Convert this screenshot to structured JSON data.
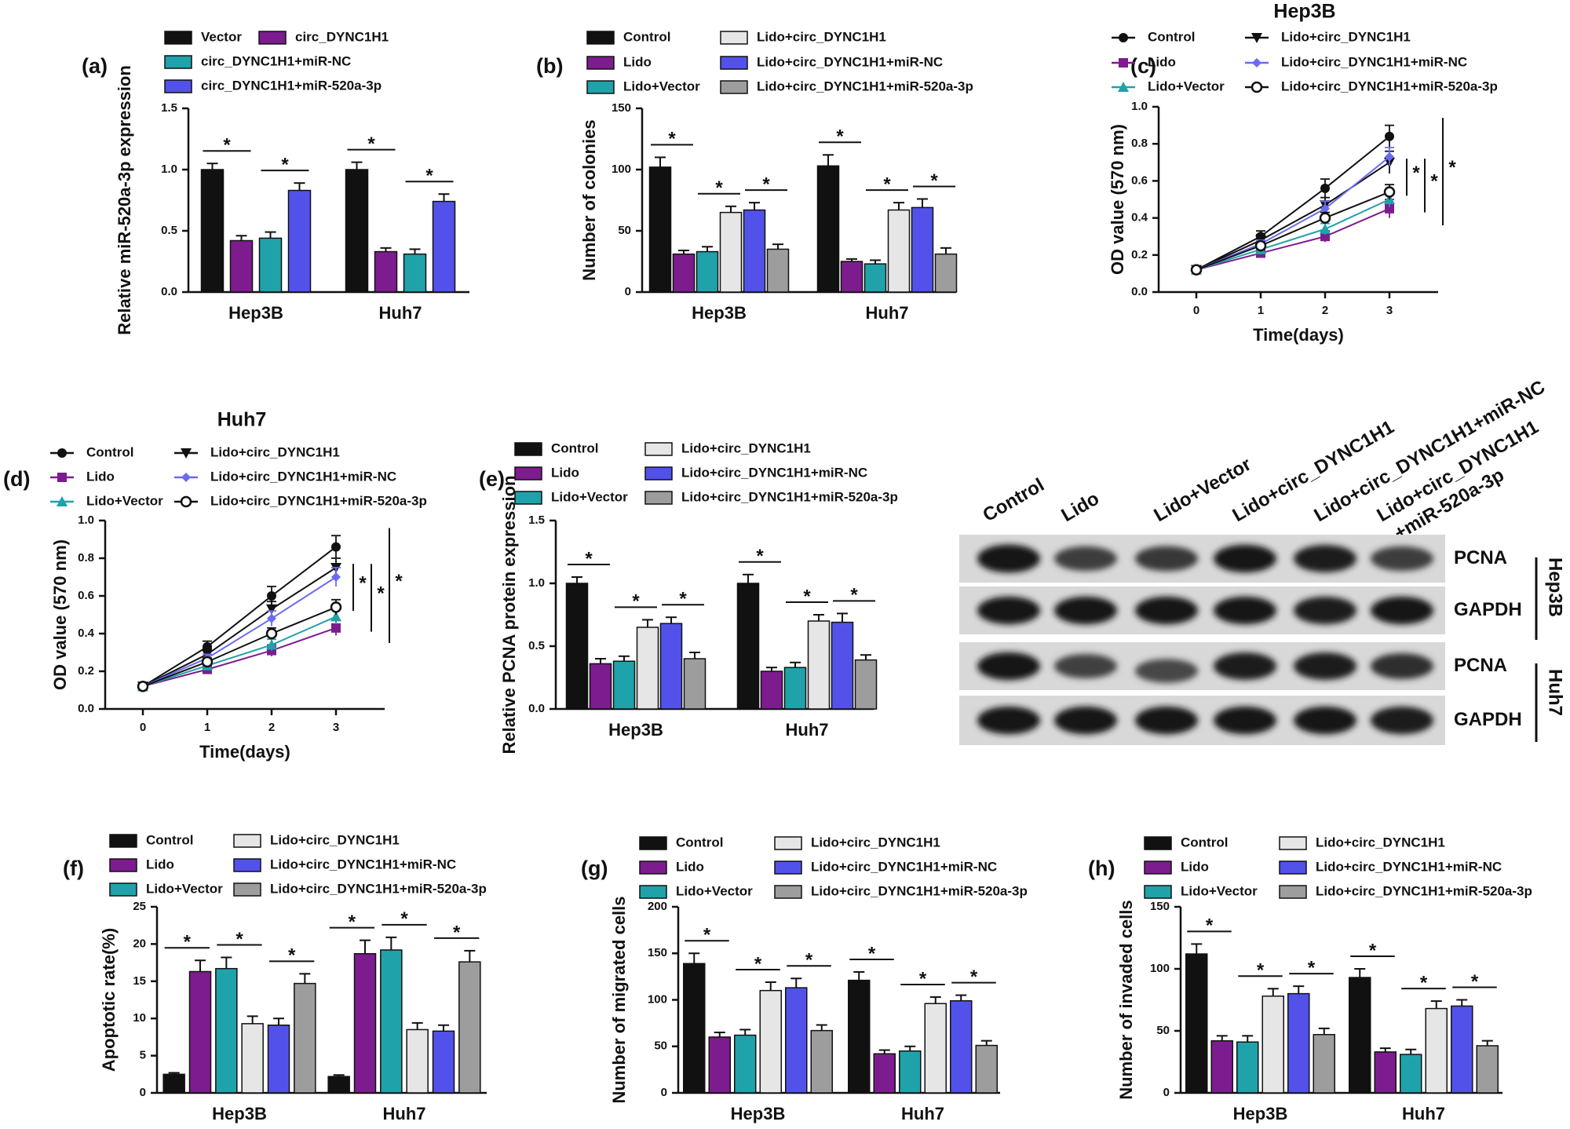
{
  "figure": {
    "colors": {
      "black": "#111111",
      "purple": "#7d1c8e",
      "teal": "#1fa2aa",
      "lightgray": "#e6e6e6",
      "blue": "#5252ea",
      "gray": "#9d9d9d",
      "line_purple": "#7d1c8e",
      "line_teal": "#1fa2aa",
      "line_blue": "#6b6bf0"
    },
    "western_blot": {
      "lanes": [
        "Control",
        "Lido",
        "Lido+Vector",
        "Lido+circ_DYNC1H1",
        "Lido+circ_DYNC1H1+miR-NC",
        "Lido+circ_DYNC1H1",
        "+miR-520a-3p"
      ],
      "rows": [
        "PCNA",
        "GAPDH",
        "PCNA",
        "GAPDH"
      ],
      "cell_lines": [
        "Hep3B",
        "Huh7"
      ],
      "pcna_hep3b_intensity": [
        1.0,
        0.55,
        0.6,
        0.95,
        0.9,
        0.55
      ],
      "pcna_huh7_intensity": [
        0.95,
        0.5,
        0.45,
        0.9,
        0.9,
        0.7
      ]
    }
  },
  "chart_data": [
    {
      "panel": "(a)",
      "type": "bar",
      "categories": [
        "Hep3B",
        "Huh7"
      ],
      "ylabel": "Relative miR-520a-3p expression",
      "ylim": [
        0,
        1.5
      ],
      "yticks": [
        "0.0",
        "0.5",
        "1.0",
        "1.5"
      ],
      "series": [
        {
          "name": "Vector",
          "color": "black",
          "values": [
            1.0,
            1.0
          ],
          "err": [
            0.05,
            0.06
          ]
        },
        {
          "name": "circ_DYNC1H1",
          "color": "purple",
          "values": [
            0.42,
            0.33
          ],
          "err": [
            0.04,
            0.03
          ]
        },
        {
          "name": "circ_DYNC1H1+miR-NC",
          "color": "teal",
          "values": [
            0.44,
            0.31
          ],
          "err": [
            0.05,
            0.04
          ]
        },
        {
          "name": "circ_DYNC1H1+miR-520a-3p",
          "color": "blue",
          "values": [
            0.83,
            0.74
          ],
          "err": [
            0.06,
            0.06
          ]
        }
      ],
      "sig": [
        [
          0,
          1
        ],
        [
          2,
          3
        ]
      ],
      "sig_label": "*"
    },
    {
      "panel": "(b)",
      "type": "bar",
      "categories": [
        "Hep3B",
        "Huh7"
      ],
      "ylabel": "Number of colonies",
      "ylim": [
        0,
        150
      ],
      "yticks": [
        "0",
        "50",
        "100",
        "150"
      ],
      "series": [
        {
          "name": "Control",
          "color": "black",
          "values": [
            102,
            103
          ],
          "err": [
            8,
            9
          ]
        },
        {
          "name": "Lido",
          "color": "purple",
          "values": [
            31,
            25
          ],
          "err": [
            3,
            2
          ]
        },
        {
          "name": "Lido+Vector",
          "color": "teal",
          "values": [
            33,
            23
          ],
          "err": [
            4,
            3
          ]
        },
        {
          "name": "Lido+circ_DYNC1H1",
          "color": "lightgray",
          "values": [
            65,
            67
          ],
          "err": [
            5,
            6
          ]
        },
        {
          "name": "Lido+circ_DYNC1H1+miR-NC",
          "color": "blue",
          "values": [
            67,
            69
          ],
          "err": [
            6,
            7
          ]
        },
        {
          "name": "Lido+circ_DYNC1H1+miR-520a-3p",
          "color": "gray",
          "values": [
            35,
            31
          ],
          "err": [
            4,
            5
          ]
        }
      ],
      "sig": [
        [
          0,
          1
        ],
        [
          2,
          3
        ],
        [
          4,
          5
        ]
      ],
      "sig_label": "*"
    },
    {
      "panel": "(c)",
      "type": "line",
      "title": "Hep3B",
      "x": [
        0,
        1,
        2,
        3
      ],
      "xticks": [
        "0",
        "1",
        "2",
        "3"
      ],
      "xlabel": "Time(days)",
      "ylabel": "OD value (570 nm)",
      "ylim": [
        0,
        1.0
      ],
      "yticks": [
        "0.0",
        "0.2",
        "0.4",
        "0.6",
        "0.8",
        "1.0"
      ],
      "series": [
        {
          "name": "Control",
          "color": "black",
          "marker": "circle",
          "values": [
            0.12,
            0.3,
            0.56,
            0.84
          ],
          "err": [
            0.01,
            0.03,
            0.05,
            0.06
          ]
        },
        {
          "name": "Lido",
          "color": "line_purple",
          "marker": "square",
          "values": [
            0.12,
            0.21,
            0.3,
            0.45
          ],
          "err": [
            0.01,
            0.02,
            0.03,
            0.05
          ]
        },
        {
          "name": "Lido+Vector",
          "color": "line_teal",
          "marker": "triangle",
          "values": [
            0.12,
            0.23,
            0.34,
            0.5
          ],
          "err": [
            0.01,
            0.02,
            0.03,
            0.04
          ]
        },
        {
          "name": "Lido+circ_DYNC1H1",
          "color": "black",
          "marker": "triangle-down",
          "values": [
            0.12,
            0.28,
            0.47,
            0.7
          ],
          "err": [
            0.01,
            0.03,
            0.04,
            0.06
          ]
        },
        {
          "name": "Lido+circ_DYNC1H1+miR-NC",
          "color": "line_blue",
          "marker": "diamond",
          "values": [
            0.12,
            0.26,
            0.45,
            0.73
          ],
          "err": [
            0.01,
            0.02,
            0.04,
            0.05
          ]
        },
        {
          "name": "Lido+circ_DYNC1H1+miR-520a-3p",
          "color": "black",
          "marker": "open-circle",
          "values": [
            0.12,
            0.25,
            0.4,
            0.54
          ],
          "err": [
            0.01,
            0.02,
            0.03,
            0.04
          ]
        }
      ],
      "sig_label": "*"
    },
    {
      "panel": "(d)",
      "type": "line",
      "title": "Huh7",
      "x": [
        0,
        1,
        2,
        3
      ],
      "xticks": [
        "0",
        "1",
        "2",
        "3"
      ],
      "xlabel": "Time(days)",
      "ylabel": "OD value (570 nm)",
      "ylim": [
        0,
        1.0
      ],
      "yticks": [
        "0.0",
        "0.2",
        "0.4",
        "0.6",
        "0.8",
        "1.0"
      ],
      "series": [
        {
          "name": "Control",
          "color": "black",
          "marker": "circle",
          "values": [
            0.12,
            0.33,
            0.6,
            0.86
          ],
          "err": [
            0.01,
            0.03,
            0.05,
            0.06
          ]
        },
        {
          "name": "Lido",
          "color": "line_purple",
          "marker": "square",
          "values": [
            0.12,
            0.21,
            0.31,
            0.43
          ],
          "err": [
            0.01,
            0.02,
            0.03,
            0.04
          ]
        },
        {
          "name": "Lido+Vector",
          "color": "line_teal",
          "marker": "triangle",
          "values": [
            0.12,
            0.23,
            0.34,
            0.49
          ],
          "err": [
            0.01,
            0.02,
            0.03,
            0.04
          ]
        },
        {
          "name": "Lido+circ_DYNC1H1",
          "color": "black",
          "marker": "triangle-down",
          "values": [
            0.12,
            0.29,
            0.53,
            0.75
          ],
          "err": [
            0.01,
            0.03,
            0.04,
            0.05
          ]
        },
        {
          "name": "Lido+circ_DYNC1H1+miR-NC",
          "color": "line_blue",
          "marker": "diamond",
          "values": [
            0.12,
            0.27,
            0.48,
            0.7
          ],
          "err": [
            0.01,
            0.02,
            0.04,
            0.05
          ]
        },
        {
          "name": "Lido+circ_DYNC1H1+miR-520a-3p",
          "color": "black",
          "marker": "open-circle",
          "values": [
            0.12,
            0.25,
            0.4,
            0.54
          ],
          "err": [
            0.01,
            0.02,
            0.03,
            0.04
          ]
        }
      ],
      "sig_label": "*"
    },
    {
      "panel": "(e)",
      "type": "bar",
      "categories": [
        "Hep3B",
        "Huh7"
      ],
      "ylabel": "Relative PCNA protein expression",
      "ylim": [
        0,
        1.5
      ],
      "yticks": [
        "0.0",
        "0.5",
        "1.0",
        "1.5"
      ],
      "series": [
        {
          "name": "Control",
          "color": "black",
          "values": [
            1.0,
            1.0
          ],
          "err": [
            0.05,
            0.07
          ]
        },
        {
          "name": "Lido",
          "color": "purple",
          "values": [
            0.36,
            0.3
          ],
          "err": [
            0.04,
            0.03
          ]
        },
        {
          "name": "Lido+Vector",
          "color": "teal",
          "values": [
            0.38,
            0.33
          ],
          "err": [
            0.04,
            0.04
          ]
        },
        {
          "name": "Lido+circ_DYNC1H1",
          "color": "lightgray",
          "values": [
            0.65,
            0.7
          ],
          "err": [
            0.06,
            0.05
          ]
        },
        {
          "name": "Lido+circ_DYNC1H1+miR-NC",
          "color": "blue",
          "values": [
            0.68,
            0.69
          ],
          "err": [
            0.05,
            0.07
          ]
        },
        {
          "name": "Lido+circ_DYNC1H1+miR-520a-3p",
          "color": "gray",
          "values": [
            0.4,
            0.39
          ],
          "err": [
            0.05,
            0.04
          ]
        }
      ],
      "sig": [
        [
          0,
          1
        ],
        [
          2,
          3
        ],
        [
          4,
          5
        ]
      ],
      "sig_label": "*"
    },
    {
      "panel": "(f)",
      "type": "bar",
      "categories": [
        "Hep3B",
        "Huh7"
      ],
      "ylabel": "Apoptotic rate(%)",
      "ylim": [
        0,
        25
      ],
      "yticks": [
        "0",
        "5",
        "10",
        "15",
        "20",
        "25"
      ],
      "series": [
        {
          "name": "Control",
          "color": "black",
          "values": [
            2.5,
            2.2
          ],
          "err": [
            0.2,
            0.2
          ]
        },
        {
          "name": "Lido",
          "color": "purple",
          "values": [
            16.3,
            18.7
          ],
          "err": [
            1.5,
            1.8
          ]
        },
        {
          "name": "Lido+Vector",
          "color": "teal",
          "values": [
            16.7,
            19.2
          ],
          "err": [
            1.5,
            1.7
          ]
        },
        {
          "name": "Lido+circ_DYNC1H1",
          "color": "lightgray",
          "values": [
            9.3,
            8.5
          ],
          "err": [
            1.0,
            0.9
          ]
        },
        {
          "name": "Lido+circ_DYNC1H1+miR-NC",
          "color": "blue",
          "values": [
            9.1,
            8.3
          ],
          "err": [
            0.9,
            0.8
          ]
        },
        {
          "name": "Lido+circ_DYNC1H1+miR-520a-3p",
          "color": "gray",
          "values": [
            14.7,
            17.6
          ],
          "err": [
            1.3,
            1.5
          ]
        }
      ],
      "sig": [
        [
          0,
          1
        ],
        [
          2,
          3
        ],
        [
          4,
          5
        ]
      ],
      "sig_label": "*"
    },
    {
      "panel": "(g)",
      "type": "bar",
      "categories": [
        "Hep3B",
        "Huh7"
      ],
      "ylabel": "Number of migrated cells",
      "ylim": [
        0,
        200
      ],
      "yticks": [
        "0",
        "50",
        "100",
        "150",
        "200"
      ],
      "series": [
        {
          "name": "Control",
          "color": "black",
          "values": [
            139,
            121
          ],
          "err": [
            11,
            9
          ]
        },
        {
          "name": "Lido",
          "color": "purple",
          "values": [
            60,
            42
          ],
          "err": [
            5,
            4
          ]
        },
        {
          "name": "Lido+Vector",
          "color": "teal",
          "values": [
            62,
            45
          ],
          "err": [
            6,
            5
          ]
        },
        {
          "name": "Lido+circ_DYNC1H1",
          "color": "lightgray",
          "values": [
            110,
            96
          ],
          "err": [
            9,
            7
          ]
        },
        {
          "name": "Lido+circ_DYNC1H1+miR-NC",
          "color": "blue",
          "values": [
            113,
            99
          ],
          "err": [
            10,
            6
          ]
        },
        {
          "name": "Lido+circ_DYNC1H1+miR-520a-3p",
          "color": "gray",
          "values": [
            67,
            51
          ],
          "err": [
            6,
            5
          ]
        }
      ],
      "sig": [
        [
          0,
          1
        ],
        [
          2,
          3
        ],
        [
          4,
          5
        ]
      ],
      "sig_label": "*"
    },
    {
      "panel": "(h)",
      "type": "bar",
      "categories": [
        "Hep3B",
        "Huh7"
      ],
      "ylabel": "Number of invaded cells",
      "ylim": [
        0,
        150
      ],
      "yticks": [
        "0",
        "50",
        "100",
        "150"
      ],
      "series": [
        {
          "name": "Control",
          "color": "black",
          "values": [
            112,
            93
          ],
          "err": [
            8,
            7
          ]
        },
        {
          "name": "Lido",
          "color": "purple",
          "values": [
            42,
            33
          ],
          "err": [
            4,
            3
          ]
        },
        {
          "name": "Lido+Vector",
          "color": "teal",
          "values": [
            41,
            31
          ],
          "err": [
            5,
            4
          ]
        },
        {
          "name": "Lido+circ_DYNC1H1",
          "color": "lightgray",
          "values": [
            78,
            68
          ],
          "err": [
            6,
            6
          ]
        },
        {
          "name": "Lido+circ_DYNC1H1+miR-NC",
          "color": "blue",
          "values": [
            80,
            70
          ],
          "err": [
            6,
            5
          ]
        },
        {
          "name": "Lido+circ_DYNC1H1+miR-520a-3p",
          "color": "gray",
          "values": [
            47,
            38
          ],
          "err": [
            5,
            4
          ]
        }
      ],
      "sig": [
        [
          0,
          1
        ],
        [
          2,
          3
        ],
        [
          4,
          5
        ]
      ],
      "sig_label": "*"
    }
  ]
}
